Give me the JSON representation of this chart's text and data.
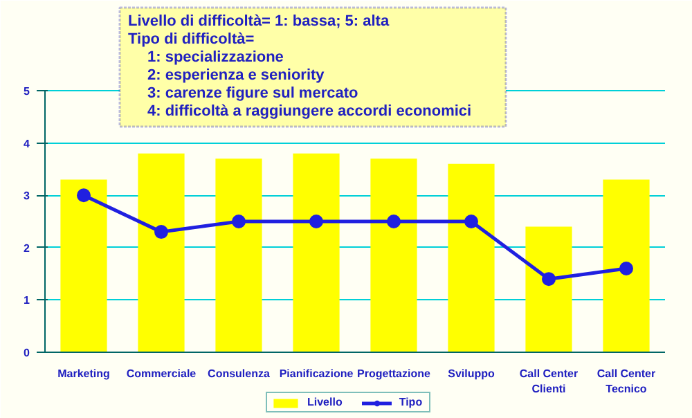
{
  "chart_data": {
    "type": "bar",
    "categories": [
      "Marketing",
      "Commerciale",
      "Consulenza",
      "Pianificazione",
      "Progettazione",
      "Sviluppo",
      "Call Center Clienti",
      "Call Center Tecnico"
    ],
    "series": [
      {
        "name": "Livello",
        "color": "#ffff00",
        "values": [
          3.3,
          3.8,
          3.7,
          3.8,
          3.7,
          3.6,
          2.4,
          3.3
        ]
      },
      {
        "name": "Tipo",
        "type": "line",
        "color": "#2020e0",
        "values": [
          3.0,
          2.3,
          2.5,
          2.5,
          2.5,
          2.5,
          1.4,
          1.6
        ]
      }
    ],
    "ylim": [
      0,
      5
    ],
    "yticks": [
      0,
      1,
      2,
      3,
      4,
      5
    ],
    "grid": "y",
    "legend": "bottom",
    "marker": "circle",
    "annotations": [
      "Livello di difficoltà= 1: bassa; 5: alta",
      "Tipo di difficoltà=",
      "1: specializzazione",
      "2: esperienza e seniority",
      "3: carenze figure sul mercato",
      "4: difficoltà a raggiungere accordi economici"
    ]
  }
}
